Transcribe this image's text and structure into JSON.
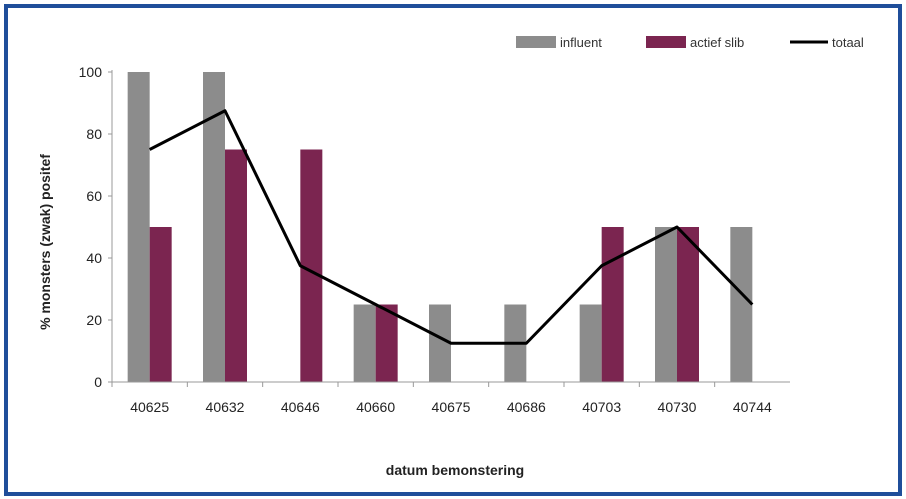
{
  "chart_data": {
    "type": "bar",
    "categories": [
      "40625",
      "40632",
      "40646",
      "40660",
      "40675",
      "40686",
      "40703",
      "40730",
      "40744"
    ],
    "series": [
      {
        "name": "influent",
        "kind": "bar",
        "color": "#8c8c8c",
        "values": [
          100,
          100,
          0,
          25,
          25,
          25,
          25,
          50,
          50
        ]
      },
      {
        "name": "actief slib",
        "kind": "bar",
        "color": "#7b2550",
        "values": [
          50,
          75,
          75,
          25,
          0,
          0,
          50,
          50,
          0
        ]
      },
      {
        "name": "totaal",
        "kind": "line",
        "color": "#000000",
        "values": [
          75,
          87.5,
          37.5,
          25,
          12.5,
          12.5,
          37.5,
          50,
          25
        ]
      }
    ],
    "yticks": [
      0,
      20,
      40,
      60,
      80,
      100
    ],
    "ylim": [
      0,
      100
    ],
    "xlabel": "datum bemonstering",
    "ylabel": "% monsters (zwak) positef",
    "legend_position": "top-right",
    "grid": false
  }
}
